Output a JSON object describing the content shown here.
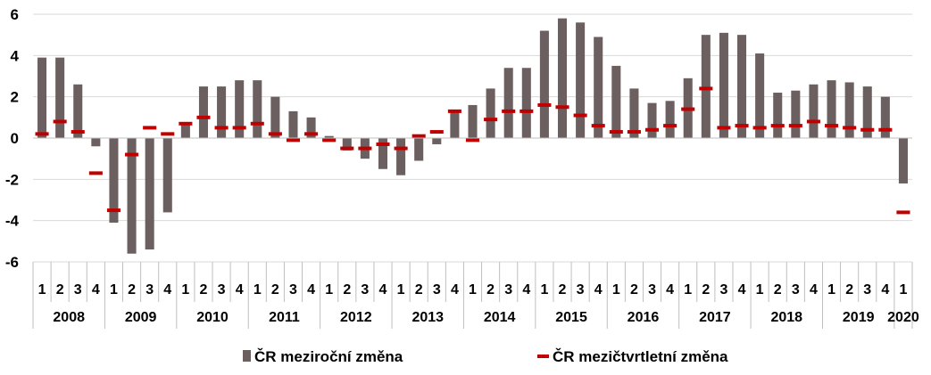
{
  "chart_data": {
    "type": "bar",
    "ylim": [
      -6,
      6
    ],
    "yticks": [
      -6,
      -4,
      -2,
      0,
      2,
      4,
      6
    ],
    "grid": true,
    "legend_position": "bottom",
    "quarter_labels": [
      "1",
      "2",
      "3",
      "4",
      "1",
      "2",
      "3",
      "4",
      "1",
      "2",
      "3",
      "4",
      "1",
      "2",
      "3",
      "4",
      "1",
      "2",
      "3",
      "4",
      "1",
      "2",
      "3",
      "4",
      "1",
      "2",
      "3",
      "4",
      "1",
      "2",
      "3",
      "4",
      "1",
      "2",
      "3",
      "4",
      "1",
      "2",
      "3",
      "4",
      "1",
      "2",
      "3",
      "4",
      "1",
      "2",
      "3",
      "4",
      "1"
    ],
    "years": [
      {
        "label": "2008",
        "quarters": 4
      },
      {
        "label": "2009",
        "quarters": 4
      },
      {
        "label": "2010",
        "quarters": 4
      },
      {
        "label": "2011",
        "quarters": 4
      },
      {
        "label": "2012",
        "quarters": 4
      },
      {
        "label": "2013",
        "quarters": 4
      },
      {
        "label": "2014",
        "quarters": 4
      },
      {
        "label": "2015",
        "quarters": 4
      },
      {
        "label": "2016",
        "quarters": 4
      },
      {
        "label": "2017",
        "quarters": 4
      },
      {
        "label": "2018",
        "quarters": 4
      },
      {
        "label": "2019",
        "quarters": 4
      },
      {
        "label": "2020",
        "quarters": 1
      }
    ],
    "series": [
      {
        "name": "ČR meziroční změna",
        "type": "bar",
        "color": "#6b5f5f",
        "values": [
          3.9,
          3.9,
          2.6,
          -0.4,
          -4.1,
          -5.6,
          -5.4,
          -3.6,
          0.7,
          2.5,
          2.5,
          2.8,
          2.8,
          2.0,
          1.3,
          1.0,
          0.1,
          -0.6,
          -1.0,
          -1.5,
          -1.8,
          -1.1,
          -0.3,
          1.3,
          1.6,
          2.4,
          3.4,
          3.4,
          5.2,
          5.8,
          5.6,
          4.9,
          3.5,
          2.4,
          1.7,
          1.8,
          2.9,
          5.0,
          5.1,
          5.0,
          4.1,
          2.2,
          2.3,
          2.6,
          2.8,
          2.7,
          2.5,
          2.0,
          -2.2
        ]
      },
      {
        "name": "ČR mezičtvrtletní změna",
        "type": "marker",
        "color": "#c00000",
        "values": [
          0.2,
          0.8,
          0.3,
          -1.7,
          -3.5,
          -0.8,
          0.5,
          0.2,
          0.7,
          1.0,
          0.5,
          0.5,
          0.7,
          0.2,
          -0.1,
          0.2,
          -0.1,
          -0.5,
          -0.5,
          -0.3,
          -0.5,
          0.1,
          0.3,
          1.3,
          -0.1,
          0.9,
          1.3,
          1.3,
          1.6,
          1.5,
          1.1,
          0.6,
          0.3,
          0.3,
          0.4,
          0.6,
          1.4,
          2.4,
          0.5,
          0.6,
          0.5,
          0.6,
          0.6,
          0.8,
          0.6,
          0.5,
          0.4,
          0.4,
          -3.6
        ]
      }
    ]
  }
}
